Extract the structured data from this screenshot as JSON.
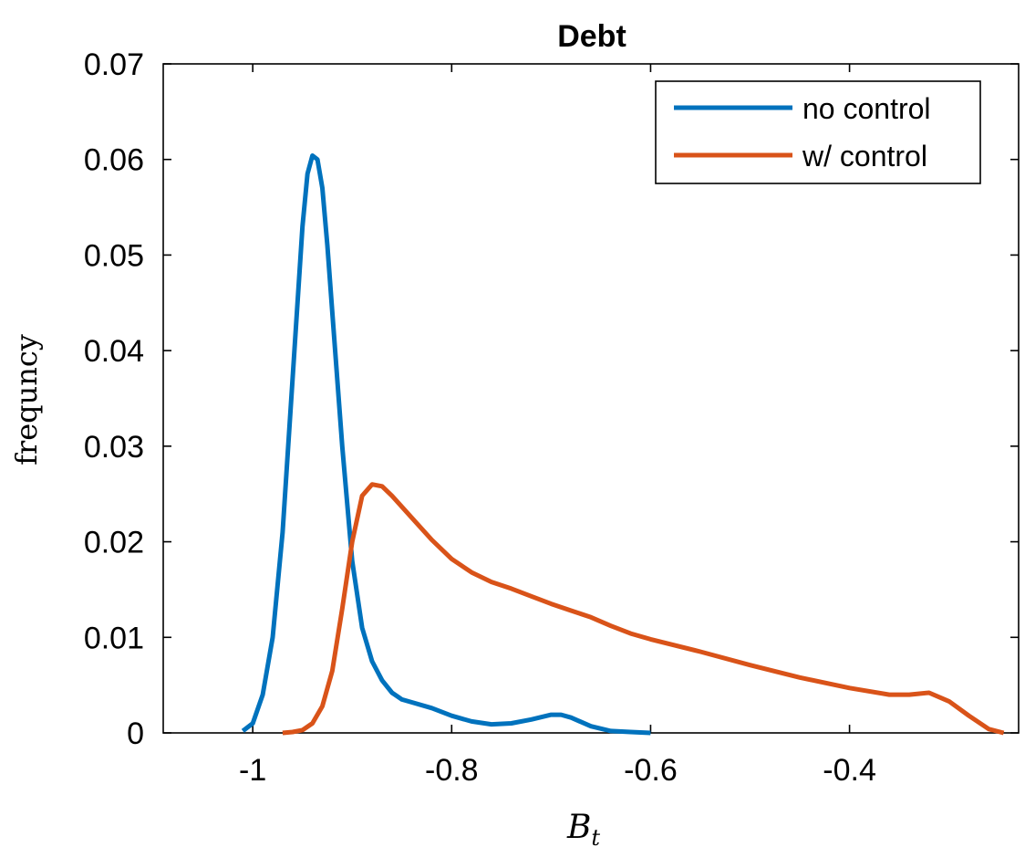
{
  "chart_data": {
    "type": "line",
    "title": "Debt",
    "xlabel_main": "B",
    "xlabel_sub": "t",
    "ylabel": "frequncy",
    "xlim": [
      -1.09,
      -0.23
    ],
    "ylim": [
      0,
      0.07
    ],
    "xticks": [
      -1,
      -0.8,
      -0.6,
      -0.4
    ],
    "xtick_labels": [
      "-1",
      "-0.8",
      "-0.6",
      "-0.4"
    ],
    "yticks": [
      0,
      0.01,
      0.02,
      0.03,
      0.04,
      0.05,
      0.06,
      0.07
    ],
    "ytick_labels": [
      "0",
      "0.01",
      "0.02",
      "0.03",
      "0.04",
      "0.05",
      "0.06",
      "0.07"
    ],
    "grid": false,
    "legend_position": "top-right",
    "series": [
      {
        "name": "no control",
        "color": "#0072BD",
        "x": [
          -1.01,
          -1.0,
          -0.99,
          -0.98,
          -0.97,
          -0.96,
          -0.95,
          -0.945,
          -0.94,
          -0.935,
          -0.93,
          -0.925,
          -0.92,
          -0.91,
          -0.9,
          -0.89,
          -0.88,
          -0.87,
          -0.86,
          -0.85,
          -0.84,
          -0.82,
          -0.8,
          -0.78,
          -0.76,
          -0.74,
          -0.72,
          -0.7,
          -0.69,
          -0.68,
          -0.66,
          -0.64,
          -0.62,
          -0.6
        ],
        "y": [
          0.0002,
          0.001,
          0.004,
          0.01,
          0.021,
          0.037,
          0.053,
          0.0585,
          0.0604,
          0.06,
          0.057,
          0.051,
          0.044,
          0.03,
          0.018,
          0.011,
          0.0075,
          0.0055,
          0.0042,
          0.0035,
          0.0032,
          0.0026,
          0.0018,
          0.0012,
          0.0009,
          0.001,
          0.0014,
          0.0019,
          0.0019,
          0.0016,
          0.0007,
          0.0002,
          0.0001,
          0.0
        ]
      },
      {
        "name": "w/ control",
        "color": "#D95319",
        "x": [
          -0.97,
          -0.96,
          -0.95,
          -0.94,
          -0.93,
          -0.92,
          -0.91,
          -0.9,
          -0.89,
          -0.88,
          -0.87,
          -0.86,
          -0.84,
          -0.82,
          -0.8,
          -0.78,
          -0.76,
          -0.74,
          -0.72,
          -0.7,
          -0.68,
          -0.66,
          -0.64,
          -0.62,
          -0.6,
          -0.55,
          -0.5,
          -0.45,
          -0.4,
          -0.36,
          -0.34,
          -0.32,
          -0.3,
          -0.28,
          -0.26,
          -0.245
        ],
        "y": [
          0.0,
          0.0001,
          0.0003,
          0.001,
          0.0028,
          0.0065,
          0.013,
          0.02,
          0.0248,
          0.026,
          0.0258,
          0.0248,
          0.0225,
          0.0202,
          0.0182,
          0.0168,
          0.0158,
          0.0151,
          0.0143,
          0.0135,
          0.0128,
          0.0121,
          0.0112,
          0.0104,
          0.0098,
          0.0085,
          0.0071,
          0.0058,
          0.0047,
          0.004,
          0.004,
          0.0042,
          0.0033,
          0.0018,
          0.0004,
          0.0
        ]
      }
    ]
  }
}
